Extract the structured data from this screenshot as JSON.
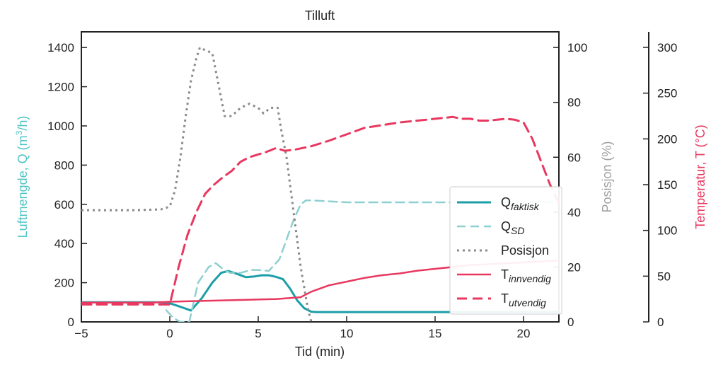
{
  "chart_data": {
    "type": "line",
    "title": "Tilluft",
    "xlabel": "Tid (min)",
    "xlim": [
      -5,
      22
    ],
    "x_ticks": [
      -5,
      0,
      5,
      10,
      15,
      20
    ],
    "axes": {
      "q": {
        "label": "Luftmengde, Q (m³/h)",
        "label_main": "Luftmengde, Q (m",
        "label_sup": "3",
        "label_end": "/h)",
        "lim": [
          0,
          1480
        ],
        "ticks": [
          0,
          200,
          400,
          600,
          800,
          1000,
          1200,
          1400
        ],
        "color": "#4fc4c4"
      },
      "pos": {
        "label": "Posisjon (%)",
        "lim": [
          0,
          105.7
        ],
        "ticks": [
          0,
          20,
          40,
          60,
          80,
          100
        ],
        "color": "#a0a0a0"
      },
      "temp": {
        "label": "Temperatur, T (°C)",
        "lim": [
          0,
          317
        ],
        "ticks": [
          0,
          50,
          100,
          150,
          200,
          250,
          300
        ],
        "color": "#e8385f"
      }
    },
    "series": [
      {
        "key": "q_faktisk",
        "name": "Q",
        "subscript": "faktisk",
        "axis": "q",
        "color": "#1c9ea6",
        "dash": "",
        "width": 3,
        "x": [
          -5,
          -0.5,
          0,
          0.5,
          1.2,
          1.8,
          2.4,
          2.9,
          3.3,
          3.8,
          4.3,
          4.8,
          5.2,
          5.6,
          6.0,
          6.4,
          6.8,
          7.2,
          7.6,
          8.0,
          8.3,
          9,
          12,
          15,
          18,
          20,
          22
        ],
        "y": [
          100,
          100,
          95,
          80,
          58,
          120,
          200,
          250,
          260,
          245,
          228,
          232,
          238,
          238,
          230,
          218,
          170,
          110,
          70,
          52,
          50,
          50,
          50,
          50,
          50,
          50,
          50
        ]
      },
      {
        "key": "q_sd",
        "name": "Q",
        "subscript": "SD",
        "axis": "q",
        "color": "#8ecfd0",
        "dash": "12,7",
        "width": 2.5,
        "x": [
          -0.2,
          0.2,
          0.6,
          1.1,
          1.6,
          2.2,
          2.6,
          3.0,
          3.4,
          4.0,
          4.6,
          5.0,
          5.6,
          6.2,
          6.6,
          7.0,
          7.4,
          7.7,
          8.0,
          10,
          14,
          18,
          20,
          22
        ],
        "y": [
          60,
          20,
          0,
          0,
          200,
          280,
          300,
          270,
          250,
          250,
          265,
          265,
          260,
          320,
          420,
          520,
          600,
          620,
          620,
          610,
          610,
          610,
          610,
          610
        ]
      },
      {
        "key": "posisjon",
        "name": "Posisjon",
        "subscript": "",
        "axis": "pos",
        "color": "#8a8a8a",
        "dash": "3,5",
        "width": 3,
        "x": [
          -5,
          -2,
          -0.5,
          0,
          0.3,
          0.6,
          0.9,
          1.2,
          1.5,
          1.7,
          2.0,
          2.4,
          2.8,
          3.1,
          3.5,
          4.0,
          4.5,
          5.0,
          5.3,
          5.7,
          6.1,
          6.3,
          6.6,
          7.0,
          7.4,
          7.8,
          8.0
        ],
        "y": [
          40.7,
          40.7,
          41,
          42,
          48,
          60,
          75,
          88,
          96,
          100,
          99,
          98,
          85,
          75,
          75,
          78,
          79.5,
          78,
          76,
          78,
          78,
          70,
          60,
          40,
          20,
          5,
          0
        ]
      },
      {
        "key": "t_innvendig",
        "name": "T",
        "subscript": "innvendig",
        "axis": "temp",
        "color": "#e8385f",
        "dash": "",
        "width": 2.5,
        "x": [
          -5,
          -1,
          0,
          2,
          4,
          6,
          7.4,
          8,
          9,
          10,
          11,
          12,
          13,
          14,
          15,
          16,
          17,
          18,
          19,
          20,
          21,
          22
        ],
        "y": [
          21,
          21,
          22,
          23,
          24,
          25,
          27,
          33,
          40,
          44,
          48,
          51,
          53,
          56,
          58,
          60,
          62,
          63,
          64,
          65,
          66,
          67
        ]
      },
      {
        "key": "t_utvendig",
        "name": "T",
        "subscript": "utvendig",
        "axis": "temp",
        "color": "#e8385f",
        "dash": "14,8",
        "width": 3,
        "x": [
          -5,
          -1,
          0,
          0.5,
          1,
          1.5,
          2,
          2.5,
          3,
          3.5,
          4,
          4.5,
          5,
          5.5,
          6,
          6.5,
          7,
          7.5,
          8,
          8.5,
          9,
          10,
          11,
          12,
          13,
          14,
          15,
          15.5,
          16,
          16.5,
          17,
          17.5,
          18,
          18.5,
          19,
          19.5,
          20,
          20.5,
          21,
          21.5,
          22
        ],
        "y": [
          19,
          19,
          19,
          60,
          95,
          120,
          140,
          150,
          158,
          165,
          175,
          180,
          183,
          186,
          190,
          187,
          188,
          190,
          192,
          195,
          198,
          205,
          212,
          215,
          218,
          220,
          222,
          223,
          224,
          222,
          222,
          220,
          220,
          221,
          222,
          221,
          218,
          200,
          175,
          150,
          130
        ]
      }
    ],
    "legend": {
      "position": "center-right",
      "entries": [
        "q_faktisk",
        "q_sd",
        "posisjon",
        "t_innvendig",
        "t_utvendig"
      ]
    }
  }
}
